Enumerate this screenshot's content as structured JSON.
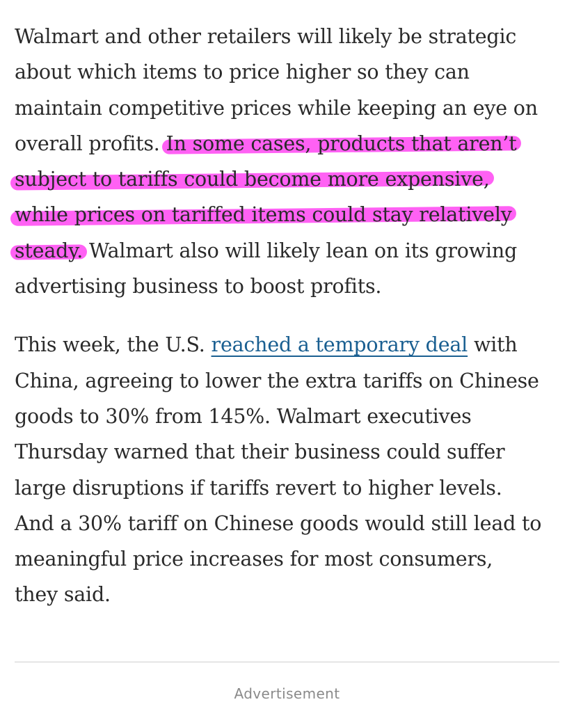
{
  "article": {
    "paragraph1": {
      "lines": [
        "Walmart and other retailers will likely be strategic",
        "about which items to price higher so they can",
        "maintain competitive prices while keeping an eye on"
      ],
      "line4_before_highlight": "overall profits. ",
      "line4_highlight": "In some cases, products that aren’t",
      "line5_highlight": "subject to tariffs could become more expensive,",
      "line6_highlight": "while prices on tariffed items could stay relatively",
      "line7_highlight": "steady.",
      "line7_after_highlight": " Walmart also will likely lean on its growing",
      "line8": "advertising business to boost profits."
    },
    "paragraph2": {
      "line1_before_link": "This week, the U.S. ",
      "link_text": "reached a temporary deal",
      "line1_after_link": " with",
      "lines": [
        "China, agreeing to lower the extra tariffs on Chinese",
        "goods to 30% from 145%. Walmart executives",
        "Thursday warned that their business could suffer",
        "large disruptions if tariffs revert to higher levels.",
        "And a 30% tariff on Chinese goods would still lead to",
        "meaningful price increases for most consumers,",
        "they said."
      ]
    }
  },
  "advertisement": {
    "label": "Advertisement"
  },
  "colors": {
    "text": "#2a2a2a",
    "highlight": "#ff3ef2",
    "link": "#1a5f91",
    "divider": "#cfcfcf",
    "ad_label": "#8a8a8a"
  }
}
